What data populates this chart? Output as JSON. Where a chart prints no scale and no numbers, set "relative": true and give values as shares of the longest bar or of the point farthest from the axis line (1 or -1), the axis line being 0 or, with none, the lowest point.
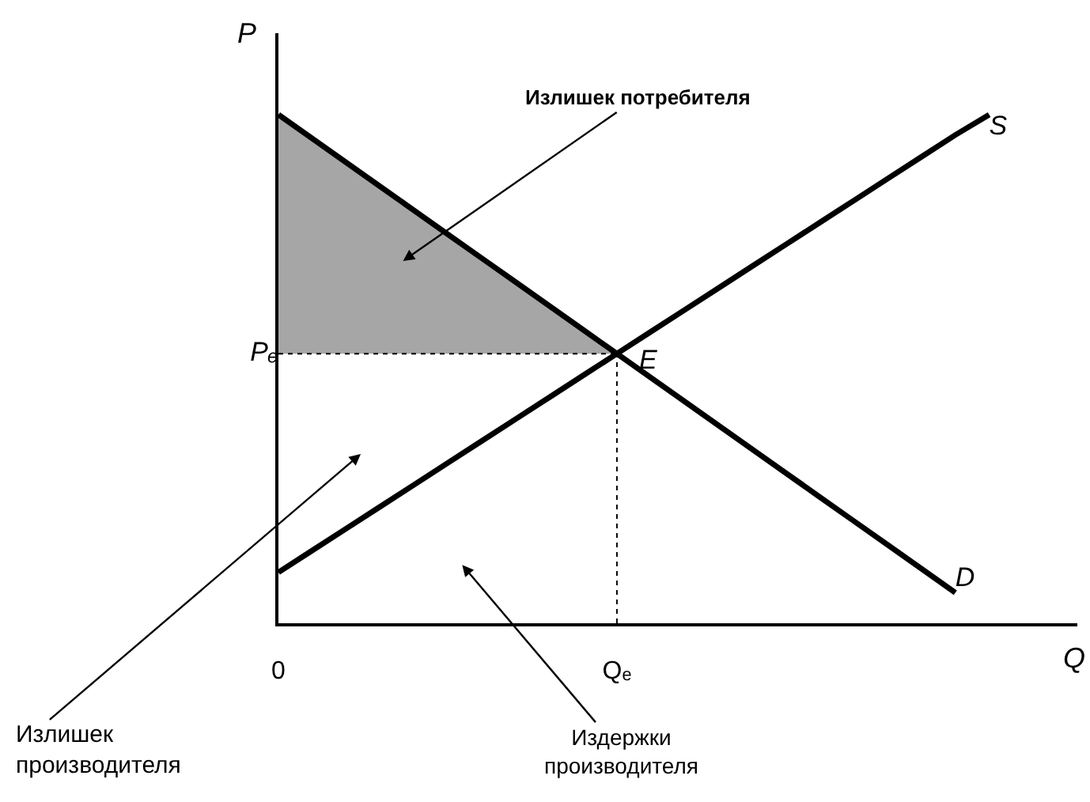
{
  "chart_data": {
    "type": "line",
    "relative": true,
    "xlabel": "Q",
    "ylabel": "P",
    "categories": [
      "0",
      null,
      null,
      null,
      null,
      null,
      null,
      null,
      null,
      null,
      "Qₑ",
      null,
      null,
      null,
      null,
      null,
      null,
      null,
      null,
      null,
      null,
      null
    ],
    "grid": false,
    "legend": false,
    "marker": "none",
    "series": [
      {
        "name": "D",
        "color": "#000000",
        "values": [
          1,
          0.953,
          0.906,
          0.859,
          0.812,
          0.765,
          0.718,
          0.671,
          0.624,
          0.577,
          0.53,
          0.483,
          0.436,
          0.389,
          0.342,
          0.295,
          0.248,
          0.201,
          0.154,
          0.107,
          0.06,
          null
        ]
      },
      {
        "name": "S",
        "color": "#000000",
        "values": [
          0.1,
          0.143,
          0.186,
          0.229,
          0.272,
          0.315,
          0.358,
          0.401,
          0.444,
          0.487,
          0.53,
          0.573,
          0.616,
          0.659,
          0.702,
          0.745,
          0.788,
          0.831,
          0.874,
          0.917,
          0.96,
          1
        ]
      },
      {
        "name": "Pₑ",
        "color": "#000000",
        "line_style": "dotted",
        "values": [
          0.53,
          0.53,
          0.53,
          0.53,
          0.53,
          0.53,
          0.53,
          0.53,
          0.53,
          0.53,
          0.53,
          null,
          null,
          null,
          null,
          null,
          null,
          null,
          null,
          null,
          null,
          null
        ]
      },
      {
        "type": "area",
        "color": "#a6a6a6",
        "values": [
          1,
          0.953,
          0.906,
          0.859,
          0.812,
          0.765,
          0.718,
          0.671,
          0.624,
          0.577,
          0.53,
          null,
          null,
          null,
          null,
          null,
          null,
          null,
          null,
          null,
          null,
          null
        ]
      },
      {
        "color": "#000000",
        "line_style": "dotted",
        "x": [
          "Qₑ",
          "Qₑ"
        ],
        "values": [
          0,
          0.53
        ]
      }
    ],
    "annotations": [
      {
        "text": "E",
        "x": "Qₑ",
        "y": 0.53
      },
      "Излишек потребителя",
      "Излишек\nпроизводителя",
      "Издержки\nпроизводителя"
    ]
  }
}
